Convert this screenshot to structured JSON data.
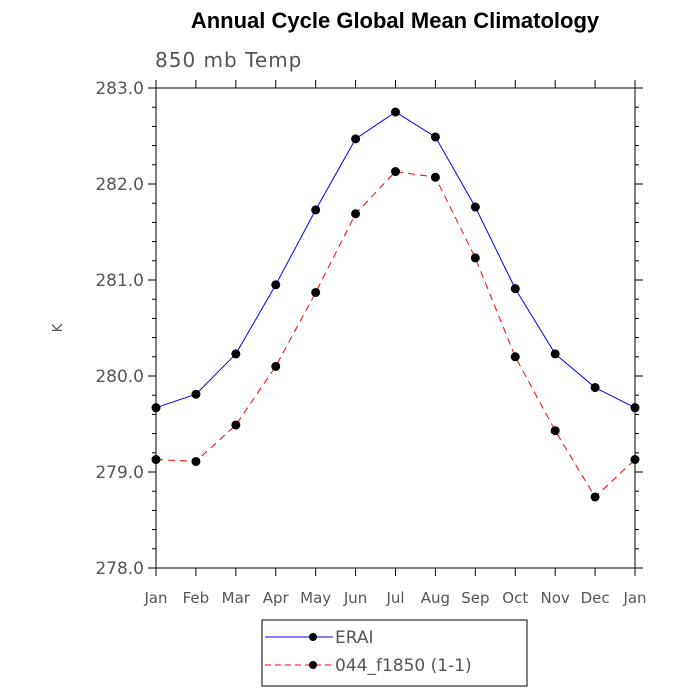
{
  "chart_data": {
    "type": "line",
    "title": "Annual Cycle Global Mean Climatology",
    "subtitle": "850 mb Temp",
    "xlabel": "",
    "ylabel": "K",
    "categories": [
      "Jan",
      "Feb",
      "Mar",
      "Apr",
      "May",
      "Jun",
      "Jul",
      "Aug",
      "Sep",
      "Oct",
      "Nov",
      "Dec",
      "Jan"
    ],
    "ylim": [
      278.0,
      283.0
    ],
    "yticks": [
      "278.0",
      "279.0",
      "280.0",
      "281.0",
      "282.0",
      "283.0"
    ],
    "grid": false,
    "legend_position": "bottom",
    "series": [
      {
        "name": "ERAI",
        "color": "#0000ff",
        "style": "solid",
        "values": [
          279.67,
          279.81,
          280.23,
          280.95,
          281.73,
          282.47,
          282.75,
          282.49,
          281.76,
          280.91,
          280.23,
          279.88,
          279.67
        ]
      },
      {
        "name": "044_f1850 (1-1)",
        "color": "#ff0000",
        "style": "dashed",
        "values": [
          279.13,
          279.11,
          279.49,
          280.1,
          280.87,
          281.69,
          282.13,
          282.07,
          281.23,
          280.2,
          279.43,
          278.74,
          279.13
        ]
      }
    ]
  }
}
